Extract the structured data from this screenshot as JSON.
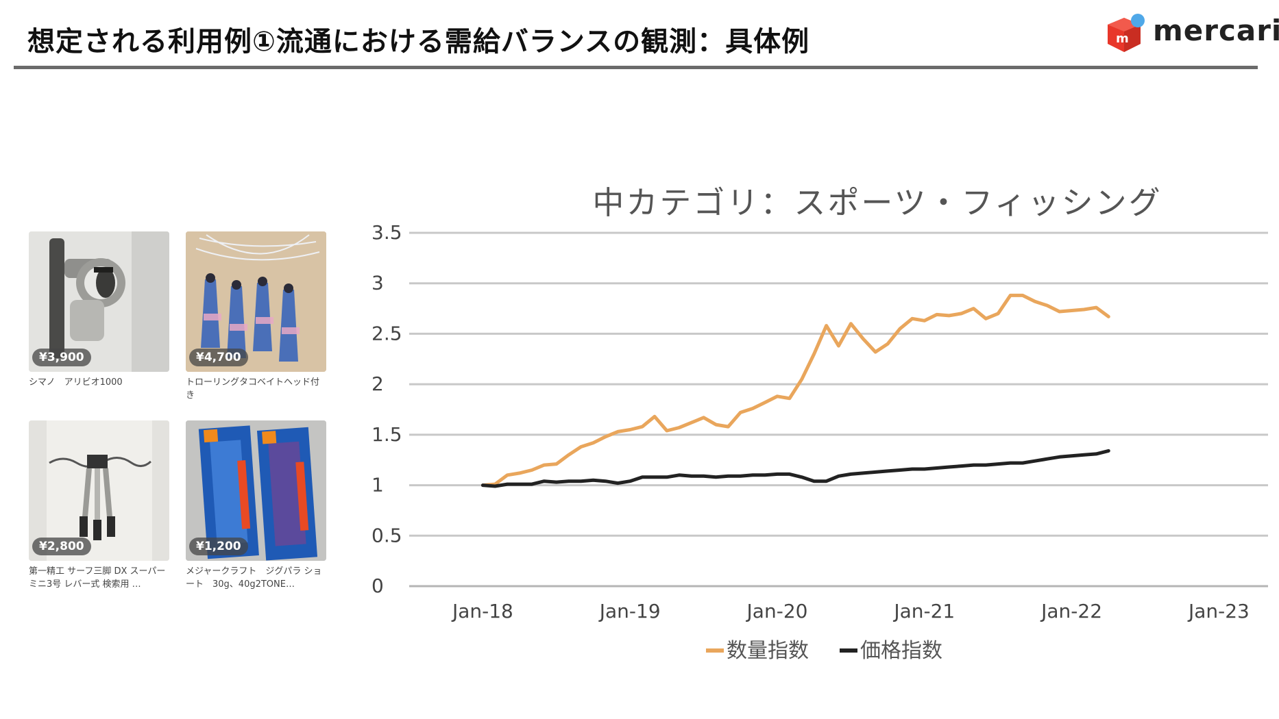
{
  "page": {
    "title": "想定される利用例①流通における需給バランスの観測：具体例",
    "logo_text": "mercari",
    "logo_icon": "mercari-box-icon",
    "colors": {
      "logo_red": "#e8372a",
      "logo_blue": "#4fa8e8",
      "rule": "#6b6b6b"
    }
  },
  "products": [
    {
      "price": "¥3,900",
      "name": "シマノ　アリビオ1000",
      "icon": "fishing-reel-icon"
    },
    {
      "price": "¥4,700",
      "name": "トローリングタコベイトヘッド付き",
      "icon": "fishing-lure-icon"
    },
    {
      "price": "¥2,800",
      "name": "第一精工 サーフ三脚 DX スーパー ミニ3号 レバー式 検索用 …",
      "icon": "rod-stand-icon"
    },
    {
      "price": "¥1,200",
      "name": "メジャークラフト　ジグパラ ショート　30g、40g2TONE…",
      "icon": "jig-package-icon"
    }
  ],
  "chart_data": {
    "type": "line",
    "title": "中カテゴリ：スポーツ・フィッシング",
    "xlabel": "",
    "ylabel": "",
    "ylim": [
      0,
      3.5
    ],
    "yticks": [
      "0",
      "0.5",
      "1",
      "1.5",
      "2",
      "2.5",
      "3",
      "3.5"
    ],
    "xticks": [
      "Jan-18",
      "Jan-19",
      "Jan-20",
      "Jan-21",
      "Jan-22",
      "Jan-23"
    ],
    "xlim": [
      "2017-07",
      "2023-05"
    ],
    "grid": true,
    "legend": "bottom",
    "series": [
      {
        "name": "数量指数",
        "color": "#e9a65c",
        "points": [
          [
            "2018-01",
            1.0
          ],
          [
            "2018-02",
            1.01
          ],
          [
            "2018-03",
            1.1
          ],
          [
            "2018-04",
            1.12
          ],
          [
            "2018-05",
            1.15
          ],
          [
            "2018-06",
            1.2
          ],
          [
            "2018-07",
            1.21
          ],
          [
            "2018-08",
            1.3
          ],
          [
            "2018-09",
            1.38
          ],
          [
            "2018-10",
            1.42
          ],
          [
            "2018-11",
            1.48
          ],
          [
            "2018-12",
            1.53
          ],
          [
            "2019-01",
            1.55
          ],
          [
            "2019-02",
            1.58
          ],
          [
            "2019-03",
            1.68
          ],
          [
            "2019-04",
            1.54
          ],
          [
            "2019-05",
            1.57
          ],
          [
            "2019-06",
            1.62
          ],
          [
            "2019-07",
            1.67
          ],
          [
            "2019-08",
            1.6
          ],
          [
            "2019-09",
            1.58
          ],
          [
            "2019-10",
            1.72
          ],
          [
            "2019-11",
            1.76
          ],
          [
            "2019-12",
            1.82
          ],
          [
            "2020-01",
            1.88
          ],
          [
            "2020-02",
            1.86
          ],
          [
            "2020-03",
            2.05
          ],
          [
            "2020-04",
            2.3
          ],
          [
            "2020-05",
            2.58
          ],
          [
            "2020-06",
            2.38
          ],
          [
            "2020-07",
            2.6
          ],
          [
            "2020-08",
            2.45
          ],
          [
            "2020-09",
            2.32
          ],
          [
            "2020-10",
            2.4
          ],
          [
            "2020-11",
            2.55
          ],
          [
            "2020-12",
            2.65
          ],
          [
            "2021-01",
            2.63
          ],
          [
            "2021-02",
            2.69
          ],
          [
            "2021-03",
            2.68
          ],
          [
            "2021-04",
            2.7
          ],
          [
            "2021-05",
            2.75
          ],
          [
            "2021-06",
            2.65
          ],
          [
            "2021-07",
            2.7
          ],
          [
            "2021-08",
            2.88
          ],
          [
            "2021-09",
            2.88
          ],
          [
            "2021-10",
            2.82
          ],
          [
            "2021-11",
            2.78
          ],
          [
            "2021-12",
            2.72
          ],
          [
            "2022-01",
            2.73
          ],
          [
            "2022-02",
            2.74
          ],
          [
            "2022-03",
            2.76
          ],
          [
            "2022-04",
            2.67
          ]
        ]
      },
      {
        "name": "価格指数",
        "color": "#222222",
        "points": [
          [
            "2018-01",
            1.0
          ],
          [
            "2018-02",
            0.99
          ],
          [
            "2018-03",
            1.01
          ],
          [
            "2018-04",
            1.01
          ],
          [
            "2018-05",
            1.01
          ],
          [
            "2018-06",
            1.04
          ],
          [
            "2018-07",
            1.03
          ],
          [
            "2018-08",
            1.04
          ],
          [
            "2018-09",
            1.04
          ],
          [
            "2018-10",
            1.05
          ],
          [
            "2018-11",
            1.04
          ],
          [
            "2018-12",
            1.02
          ],
          [
            "2019-01",
            1.04
          ],
          [
            "2019-02",
            1.08
          ],
          [
            "2019-03",
            1.08
          ],
          [
            "2019-04",
            1.08
          ],
          [
            "2019-05",
            1.1
          ],
          [
            "2019-06",
            1.09
          ],
          [
            "2019-07",
            1.09
          ],
          [
            "2019-08",
            1.08
          ],
          [
            "2019-09",
            1.09
          ],
          [
            "2019-10",
            1.09
          ],
          [
            "2019-11",
            1.1
          ],
          [
            "2019-12",
            1.1
          ],
          [
            "2020-01",
            1.11
          ],
          [
            "2020-02",
            1.11
          ],
          [
            "2020-03",
            1.08
          ],
          [
            "2020-04",
            1.04
          ],
          [
            "2020-05",
            1.04
          ],
          [
            "2020-06",
            1.09
          ],
          [
            "2020-07",
            1.11
          ],
          [
            "2020-08",
            1.12
          ],
          [
            "2020-09",
            1.13
          ],
          [
            "2020-10",
            1.14
          ],
          [
            "2020-11",
            1.15
          ],
          [
            "2020-12",
            1.16
          ],
          [
            "2021-01",
            1.16
          ],
          [
            "2021-02",
            1.17
          ],
          [
            "2021-03",
            1.18
          ],
          [
            "2021-04",
            1.19
          ],
          [
            "2021-05",
            1.2
          ],
          [
            "2021-06",
            1.2
          ],
          [
            "2021-07",
            1.21
          ],
          [
            "2021-08",
            1.22
          ],
          [
            "2021-09",
            1.22
          ],
          [
            "2021-10",
            1.24
          ],
          [
            "2021-11",
            1.26
          ],
          [
            "2021-12",
            1.28
          ],
          [
            "2022-01",
            1.29
          ],
          [
            "2022-02",
            1.3
          ],
          [
            "2022-03",
            1.31
          ],
          [
            "2022-04",
            1.34
          ]
        ]
      }
    ]
  }
}
